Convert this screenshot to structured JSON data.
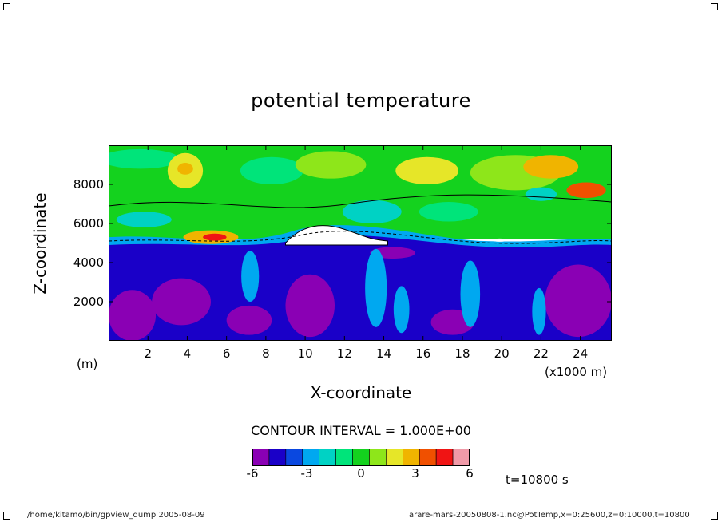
{
  "chart_data": {
    "type": "heatmap",
    "title": "potential temperature",
    "xlabel": "X-coordinate",
    "ylabel": "Z-coordinate",
    "x_units_note": "(x1000 m)",
    "y_units_note": "(m)",
    "xlim": [
      0,
      25.6
    ],
    "ylim": [
      0,
      10000
    ],
    "xticks": [
      "2",
      "4",
      "6",
      "8",
      "10",
      "12",
      "14",
      "16",
      "18",
      "20",
      "22",
      "24"
    ],
    "yticks": [
      "2000",
      "4000",
      "6000",
      "8000"
    ],
    "contour_interval_label": "CONTOUR INTERVAL = 1.000E+00",
    "colorbar": {
      "levels": [
        -6,
        -5,
        -4,
        -3,
        -2,
        -1,
        0,
        1,
        2,
        3,
        4,
        5,
        6
      ],
      "tick_labels": [
        "-6",
        "-3",
        "0",
        "3",
        "6"
      ],
      "colors": [
        "#8a00b4",
        "#1a00c8",
        "#0a48e0",
        "#00a8f0",
        "#00d2c4",
        "#00e47a",
        "#14d21e",
        "#8ee61a",
        "#e6e628",
        "#f0b400",
        "#f05000",
        "#f01414",
        "#f09aa8"
      ]
    },
    "grid": false,
    "time_label": "t=10800 s"
  },
  "footer": {
    "left": "/home/kitamo/bin/gpview_dump  2005-08-09",
    "right": "arare-mars-20050808-1.nc@PotTemp,x=0:25600,z=0:10000,t=10800"
  }
}
